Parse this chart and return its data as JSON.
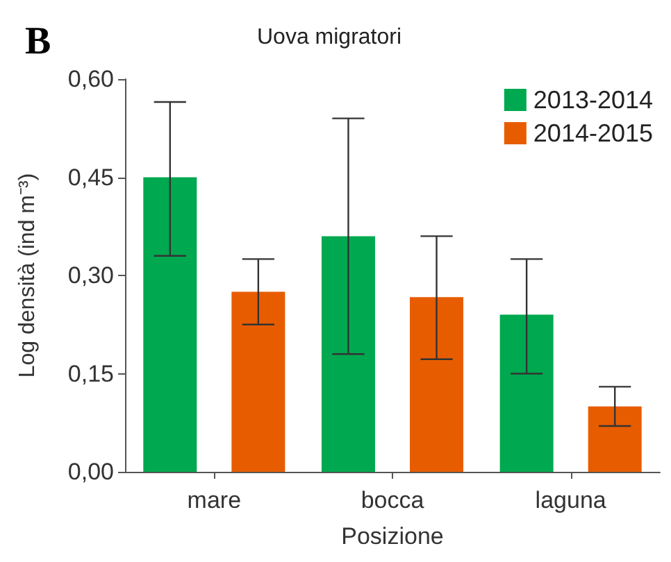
{
  "chart_data": {
    "type": "bar",
    "title": "Uova migratori",
    "xlabel": "Posizione",
    "ylabel": "Log densità (ind m⁻³)",
    "annotations": [
      "B"
    ],
    "categories": [
      "mare",
      "bocca",
      "laguna"
    ],
    "series": [
      {
        "name": "2013-2014",
        "color": "#00a84f",
        "values": [
          0.45,
          0.36,
          0.24
        ],
        "errors": [
          [
            0.33,
            0.565
          ],
          [
            0.18,
            0.54
          ],
          [
            0.15,
            0.325
          ]
        ]
      },
      {
        "name": "2014-2015",
        "color": "#e85c00",
        "values": [
          0.275,
          0.267,
          0.1
        ],
        "errors": [
          [
            0.225,
            0.325
          ],
          [
            0.172,
            0.36
          ],
          [
            0.07,
            0.13
          ]
        ]
      }
    ],
    "ylim": [
      0,
      0.6
    ],
    "yticks": [
      {
        "value": 0,
        "label": "0,00"
      },
      {
        "value": 0.15,
        "label": "0,15"
      },
      {
        "value": 0.3,
        "label": "0,30"
      },
      {
        "value": 0.45,
        "label": "0,45"
      },
      {
        "value": 0.6,
        "label": "0,60"
      }
    ],
    "grid": false,
    "legend": "top right"
  }
}
